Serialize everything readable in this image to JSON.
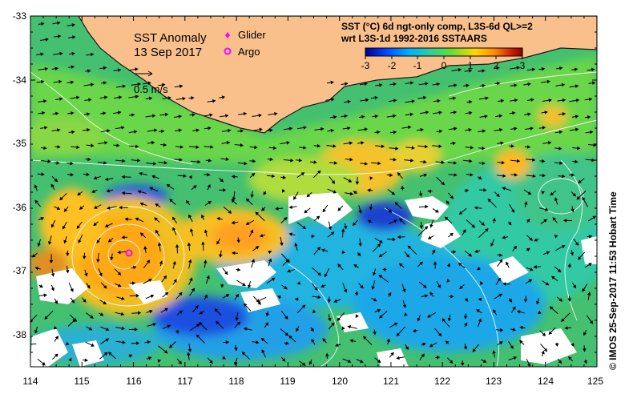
{
  "map": {
    "title": "SST Anomaly",
    "date": "13 Sep 2017",
    "scale_label": "0.5 m/s",
    "legend": {
      "glider_label": "Glider",
      "argo_label": "Argo",
      "glider_color": "#ff00ff",
      "argo_color": "#ff00ff"
    },
    "product": {
      "line1": "SST (°C) 6d ngt-only comp, L3S-6d QL>=2",
      "line2": "wrt L3S-1d 1992-2016 SSTAARS"
    },
    "colorbar": {
      "ticks": [
        "-3",
        "-2",
        "-1",
        "0",
        "1",
        "2",
        "3"
      ],
      "colors": [
        "#00008b",
        "#0040ff",
        "#00b0ff",
        "#33cc99",
        "#66dd33",
        "#ffd700",
        "#ff8c00",
        "#cc2200",
        "#8b0000"
      ]
    },
    "x_ticks": [
      "114",
      "115",
      "116",
      "117",
      "118",
      "119",
      "120",
      "121",
      "122",
      "123",
      "124",
      "125"
    ],
    "y_ticks": [
      "-33",
      "-34",
      "-35",
      "-36",
      "-37",
      "-38"
    ],
    "credit": "© IMOS 25-Sep-2017 11:53 Hobart Time",
    "colors": {
      "land": "#f9c08c",
      "no_data": "#ffffff",
      "argo_marker": "#ff00ff"
    },
    "argo_float": {
      "lon": 115.9,
      "lat": -36.7
    }
  }
}
